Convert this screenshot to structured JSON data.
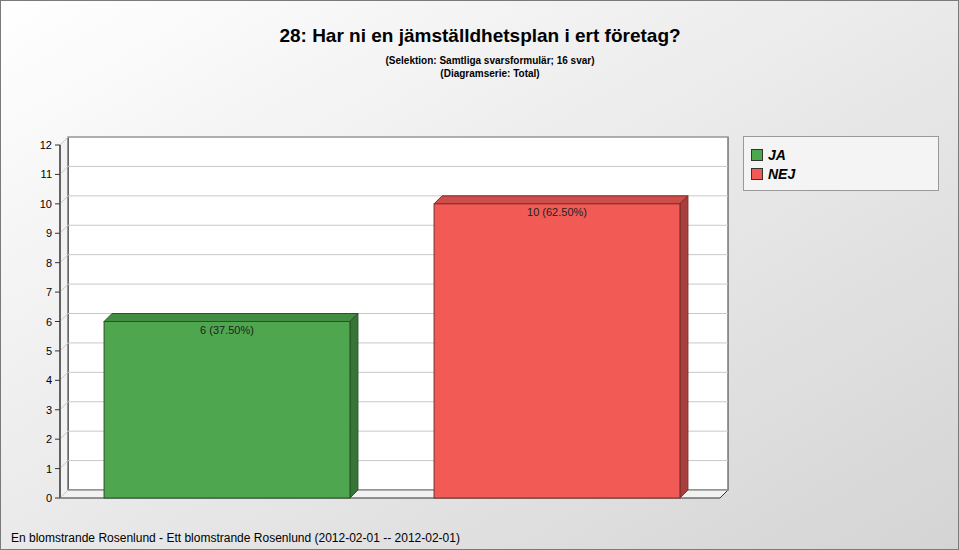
{
  "chart_data": {
    "type": "bar",
    "title": "28: Har ni en jämställdhetsplan i ert företag?",
    "subtitle": [
      "(Selektion: Samtliga svarsformulär; 16 svar)",
      "(Diagramserie: Total)"
    ],
    "annotations": [
      "En blomstrande Rosenlund - Ett blomstrande Rosenlund (2012-02-01 -- 2012-02-01)"
    ],
    "categories": [
      "JA",
      "NEJ"
    ],
    "values": [
      6,
      10
    ],
    "value_labels": [
      "6 (37.50%)",
      "10 (62.50%)"
    ],
    "colors": [
      "#4ea64e",
      "#f25a56"
    ],
    "ylim": [
      0,
      12
    ],
    "yticks": [
      0,
      1,
      2,
      3,
      4,
      5,
      6,
      7,
      8,
      9,
      10,
      11,
      12
    ],
    "grid": true,
    "legend": "right",
    "data_labels": true,
    "tick_labels": "y"
  }
}
